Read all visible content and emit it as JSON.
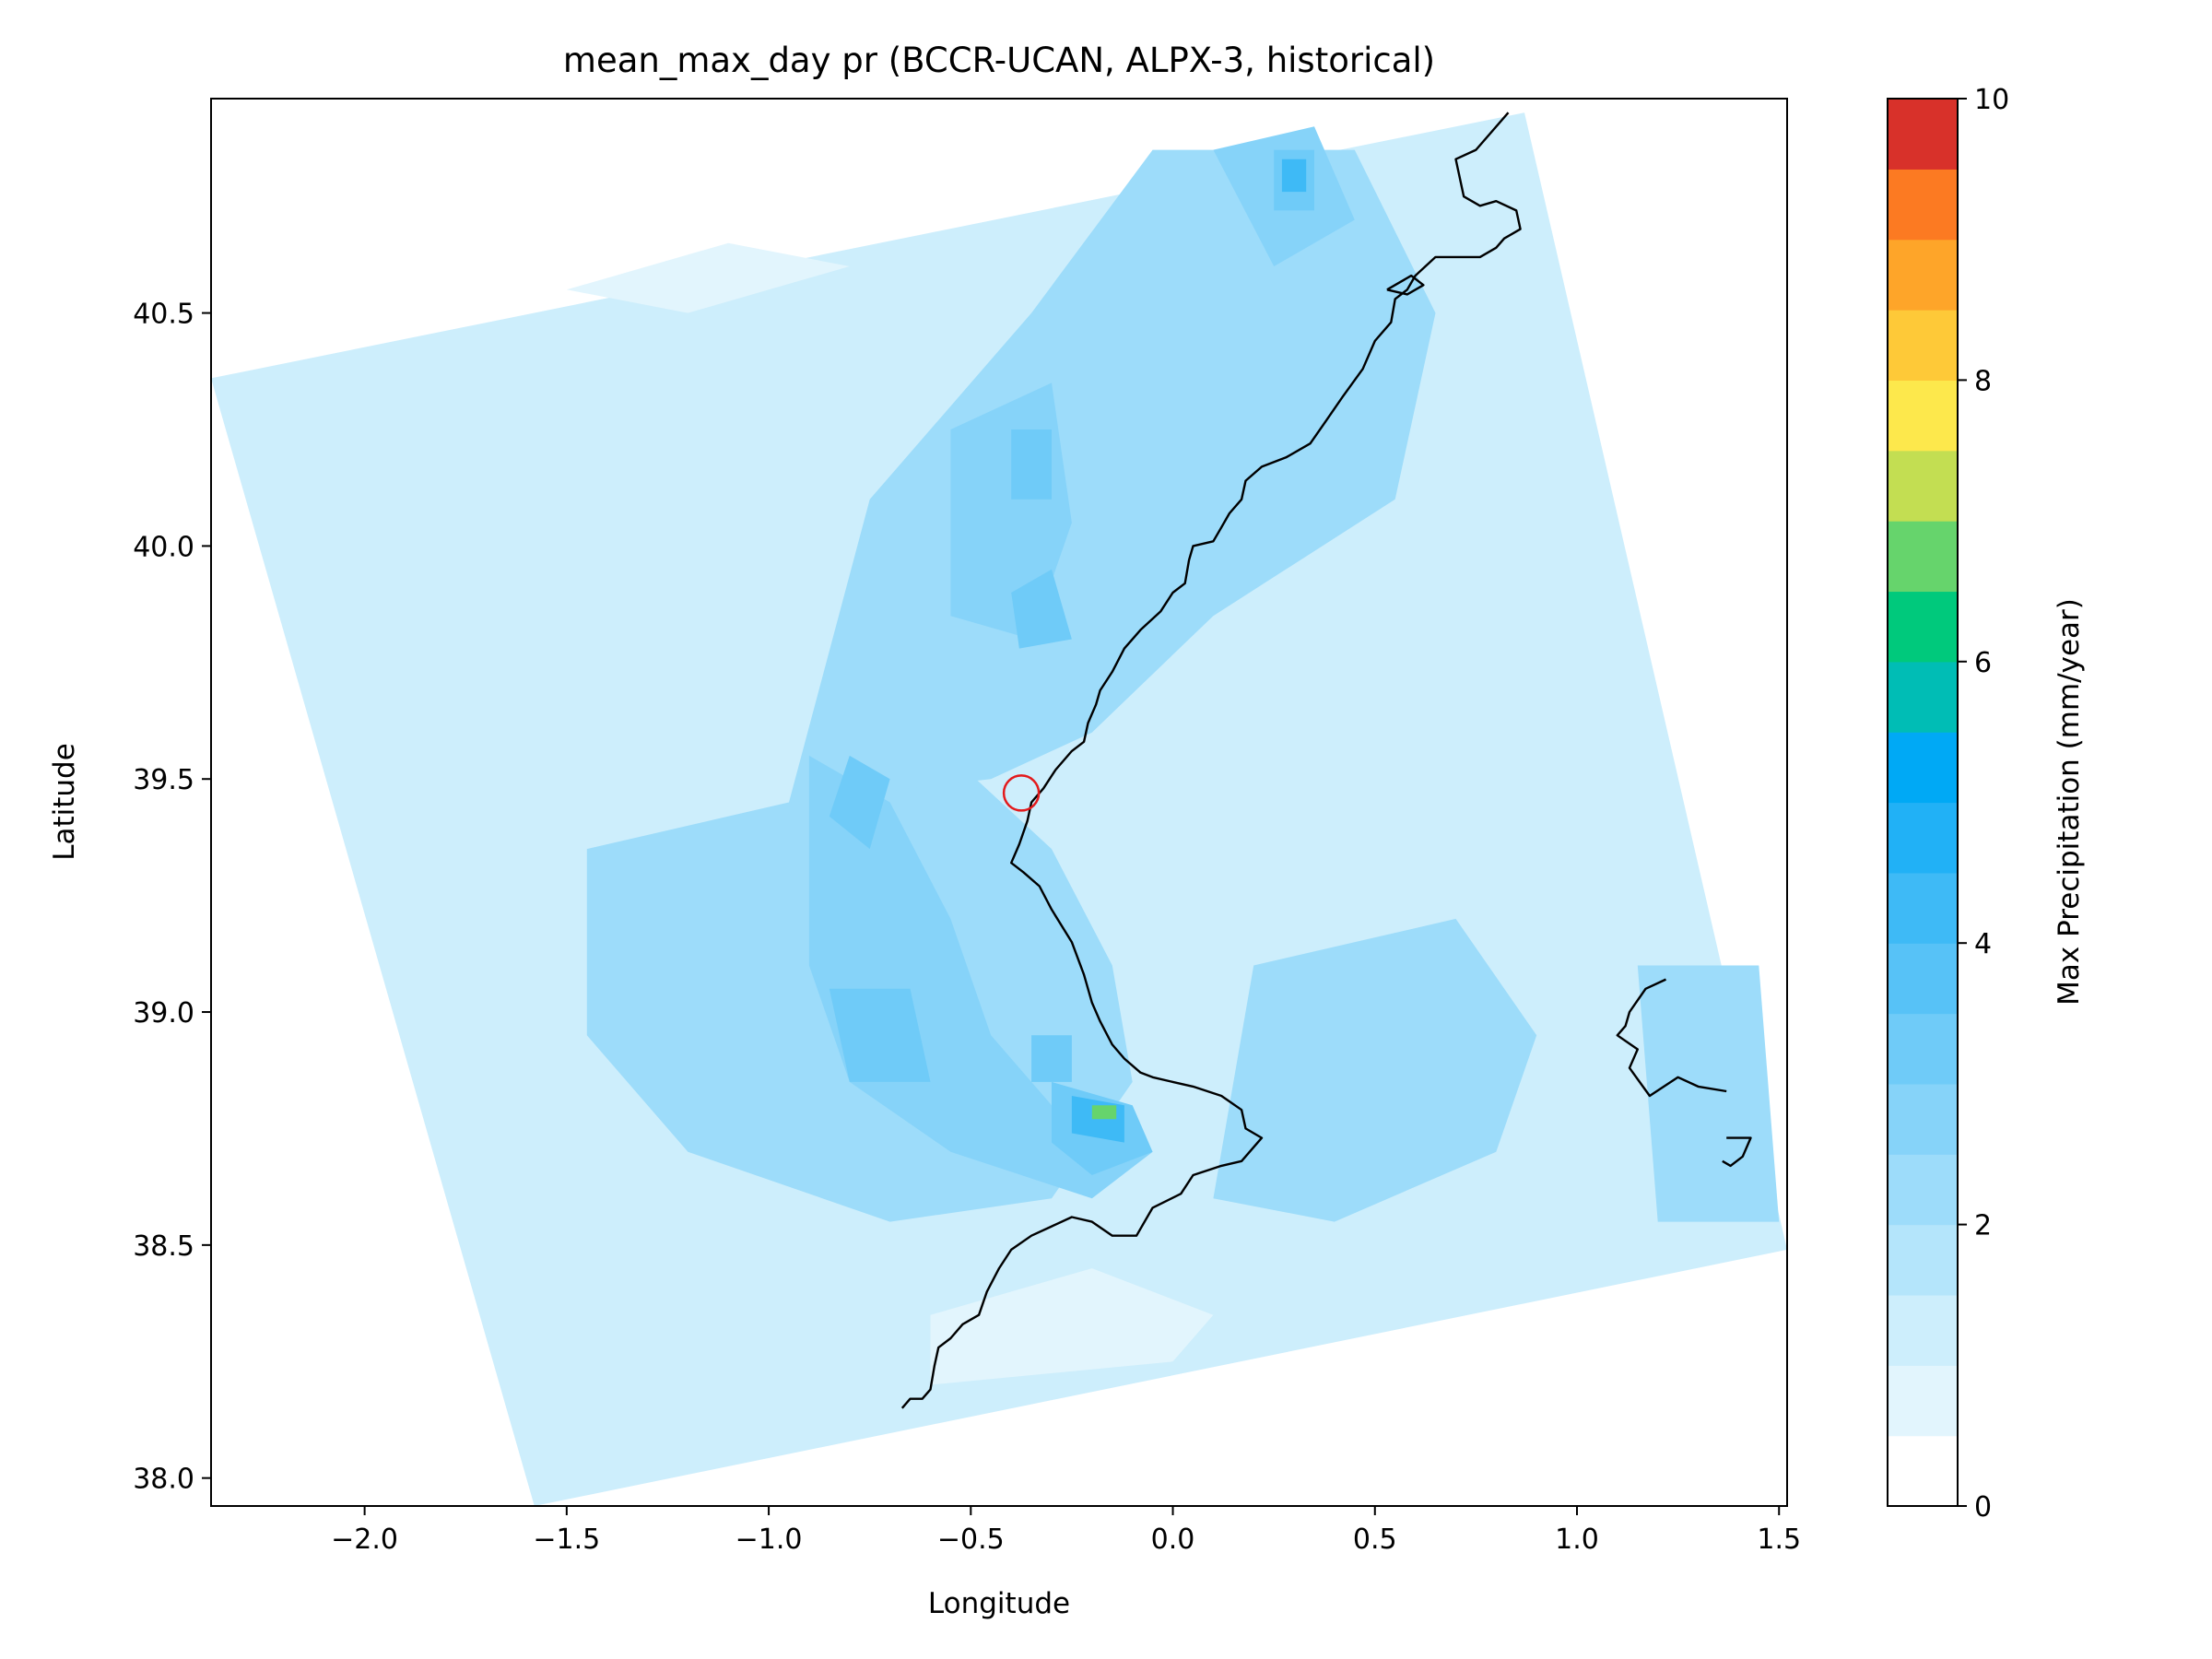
{
  "chart_data": {
    "type": "heatmap",
    "title": "mean_max_day pr (BCCR-UCAN, ALPX-3, historical)",
    "xlabel": "Longitude",
    "ylabel": "Latitude",
    "xlim": [
      -2.38,
      1.52
    ],
    "ylim": [
      37.94,
      40.96
    ],
    "xticks": [
      {
        "value": -2.0,
        "label": "−2.0"
      },
      {
        "value": -1.5,
        "label": "−1.5"
      },
      {
        "value": -1.0,
        "label": "−1.0"
      },
      {
        "value": -0.5,
        "label": "−0.5"
      },
      {
        "value": 0.0,
        "label": "0.0"
      },
      {
        "value": 0.5,
        "label": "0.5"
      },
      {
        "value": 1.0,
        "label": "1.0"
      },
      {
        "value": 1.5,
        "label": "1.5"
      }
    ],
    "yticks": [
      {
        "value": 38.0,
        "label": "38.0"
      },
      {
        "value": 38.5,
        "label": "38.5"
      },
      {
        "value": 39.0,
        "label": "39.0"
      },
      {
        "value": 39.5,
        "label": "39.5"
      },
      {
        "value": 40.0,
        "label": "40.0"
      },
      {
        "value": 40.5,
        "label": "40.5"
      }
    ],
    "domain_corners": [
      [
        -2.38,
        40.36
      ],
      [
        0.87,
        40.93
      ],
      [
        1.52,
        38.49
      ],
      [
        -1.58,
        37.94
      ]
    ],
    "background_value": 1.3,
    "regions": [
      {
        "value": 2.3,
        "polygon": [
          [
            -1.45,
            39.35
          ],
          [
            -0.95,
            39.45
          ],
          [
            -0.75,
            39.6
          ],
          [
            -0.55,
            39.55
          ],
          [
            -0.3,
            39.35
          ],
          [
            -0.15,
            39.1
          ],
          [
            -0.1,
            38.85
          ],
          [
            -0.3,
            38.6
          ],
          [
            -0.7,
            38.55
          ],
          [
            -1.2,
            38.7
          ],
          [
            -1.45,
            38.95
          ]
        ]
      },
      {
        "value": 2.3,
        "polygon": [
          [
            -0.95,
            39.45
          ],
          [
            -0.75,
            40.1
          ],
          [
            -0.35,
            40.5
          ],
          [
            -0.05,
            40.85
          ],
          [
            0.45,
            40.85
          ],
          [
            0.65,
            40.5
          ],
          [
            0.55,
            40.1
          ],
          [
            0.1,
            39.85
          ],
          [
            -0.2,
            39.6
          ],
          [
            -0.45,
            39.5
          ]
        ]
      },
      {
        "value": 2.3,
        "polygon": [
          [
            0.2,
            39.1
          ],
          [
            0.7,
            39.2
          ],
          [
            0.9,
            38.95
          ],
          [
            0.8,
            38.7
          ],
          [
            0.4,
            38.55
          ],
          [
            0.1,
            38.6
          ]
        ]
      },
      {
        "value": 2.3,
        "polygon": [
          [
            1.15,
            39.1
          ],
          [
            1.45,
            39.1
          ],
          [
            1.5,
            38.55
          ],
          [
            1.2,
            38.55
          ]
        ]
      },
      {
        "value": 2.8,
        "polygon": [
          [
            -0.9,
            39.55
          ],
          [
            -0.7,
            39.45
          ],
          [
            -0.55,
            39.2
          ],
          [
            -0.45,
            38.95
          ],
          [
            -0.25,
            38.75
          ],
          [
            -0.05,
            38.7
          ],
          [
            -0.2,
            38.6
          ],
          [
            -0.55,
            38.7
          ],
          [
            -0.8,
            38.85
          ],
          [
            -0.9,
            39.1
          ]
        ]
      },
      {
        "value": 2.8,
        "polygon": [
          [
            -0.55,
            40.25
          ],
          [
            -0.3,
            40.35
          ],
          [
            -0.25,
            40.05
          ],
          [
            -0.35,
            39.8
          ],
          [
            -0.55,
            39.85
          ]
        ]
      },
      {
        "value": 2.8,
        "polygon": [
          [
            0.1,
            40.85
          ],
          [
            0.35,
            40.9
          ],
          [
            0.45,
            40.7
          ],
          [
            0.25,
            40.6
          ]
        ]
      },
      {
        "value": 3.3,
        "polygon": [
          [
            -0.4,
            40.25
          ],
          [
            -0.3,
            40.25
          ],
          [
            -0.3,
            40.1
          ],
          [
            -0.4,
            40.1
          ]
        ]
      },
      {
        "value": 3.3,
        "polygon": [
          [
            -0.4,
            39.9
          ],
          [
            -0.3,
            39.95
          ],
          [
            -0.25,
            39.8
          ],
          [
            -0.38,
            39.78
          ]
        ]
      },
      {
        "value": 3.3,
        "polygon": [
          [
            -0.8,
            39.55
          ],
          [
            -0.7,
            39.5
          ],
          [
            -0.75,
            39.35
          ],
          [
            -0.85,
            39.42
          ]
        ]
      },
      {
        "value": 3.3,
        "polygon": [
          [
            -0.85,
            39.05
          ],
          [
            -0.65,
            39.05
          ],
          [
            -0.6,
            38.85
          ],
          [
            -0.8,
            38.85
          ]
        ]
      },
      {
        "value": 3.3,
        "polygon": [
          [
            -0.35,
            38.95
          ],
          [
            -0.25,
            38.95
          ],
          [
            -0.25,
            38.85
          ],
          [
            -0.35,
            38.85
          ]
        ]
      },
      {
        "value": 3.3,
        "polygon": [
          [
            -0.3,
            38.85
          ],
          [
            -0.1,
            38.8
          ],
          [
            -0.05,
            38.7
          ],
          [
            -0.2,
            38.65
          ],
          [
            -0.3,
            38.72
          ]
        ]
      },
      {
        "value": 3.3,
        "polygon": [
          [
            0.25,
            40.85
          ],
          [
            0.35,
            40.85
          ],
          [
            0.35,
            40.72
          ],
          [
            0.25,
            40.72
          ]
        ]
      },
      {
        "value": 4.3,
        "polygon": [
          [
            -0.25,
            38.82
          ],
          [
            -0.12,
            38.8
          ],
          [
            -0.12,
            38.72
          ],
          [
            -0.25,
            38.74
          ]
        ]
      },
      {
        "value": 4.3,
        "polygon": [
          [
            0.27,
            40.83
          ],
          [
            0.33,
            40.83
          ],
          [
            0.33,
            40.76
          ],
          [
            0.27,
            40.76
          ]
        ]
      },
      {
        "value": 0.9,
        "polygon": [
          [
            -0.6,
            38.35
          ],
          [
            -0.2,
            38.45
          ],
          [
            0.1,
            38.35
          ],
          [
            0.0,
            38.25
          ],
          [
            -0.6,
            38.2
          ]
        ]
      },
      {
        "value": 0.9,
        "polygon": [
          [
            -1.5,
            40.55
          ],
          [
            -1.1,
            40.65
          ],
          [
            -0.8,
            40.6
          ],
          [
            -1.2,
            40.5
          ]
        ]
      },
      {
        "value": 6.5,
        "polygon": [
          [
            -0.2,
            38.8
          ],
          [
            -0.14,
            38.8
          ],
          [
            -0.14,
            38.77
          ],
          [
            -0.2,
            38.77
          ]
        ]
      }
    ],
    "coastlines": [
      [
        [
          0.83,
          40.93
        ],
        [
          0.75,
          40.85
        ],
        [
          0.7,
          40.83
        ],
        [
          0.72,
          40.75
        ],
        [
          0.76,
          40.73
        ],
        [
          0.8,
          40.74
        ],
        [
          0.85,
          40.72
        ],
        [
          0.86,
          40.68
        ],
        [
          0.82,
          40.66
        ],
        [
          0.8,
          40.64
        ],
        [
          0.76,
          40.62
        ],
        [
          0.65,
          40.62
        ],
        [
          0.6,
          40.58
        ],
        [
          0.58,
          40.55
        ],
        [
          0.55,
          40.53
        ],
        [
          0.54,
          40.48
        ],
        [
          0.5,
          40.44
        ],
        [
          0.47,
          40.38
        ],
        [
          0.42,
          40.32
        ],
        [
          0.38,
          40.27
        ],
        [
          0.34,
          40.22
        ],
        [
          0.28,
          40.19
        ],
        [
          0.22,
          40.17
        ],
        [
          0.18,
          40.14
        ],
        [
          0.17,
          40.1
        ],
        [
          0.14,
          40.07
        ],
        [
          0.12,
          40.04
        ],
        [
          0.1,
          40.01
        ],
        [
          0.05,
          40.0
        ],
        [
          0.04,
          39.97
        ],
        [
          0.03,
          39.92
        ],
        [
          0.0,
          39.9
        ],
        [
          -0.03,
          39.86
        ],
        [
          -0.08,
          39.82
        ],
        [
          -0.12,
          39.78
        ],
        [
          -0.15,
          39.73
        ],
        [
          -0.18,
          39.69
        ],
        [
          -0.19,
          39.66
        ],
        [
          -0.21,
          39.62
        ],
        [
          -0.22,
          39.58
        ],
        [
          -0.25,
          39.56
        ],
        [
          -0.29,
          39.52
        ],
        [
          -0.32,
          39.48
        ],
        [
          -0.35,
          39.45
        ],
        [
          -0.36,
          39.41
        ],
        [
          -0.38,
          39.36
        ],
        [
          -0.4,
          39.32
        ],
        [
          -0.37,
          39.3
        ],
        [
          -0.33,
          39.27
        ],
        [
          -0.3,
          39.22
        ],
        [
          -0.25,
          39.15
        ],
        [
          -0.22,
          39.08
        ],
        [
          -0.2,
          39.02
        ],
        [
          -0.18,
          38.98
        ],
        [
          -0.15,
          38.93
        ],
        [
          -0.12,
          38.9
        ],
        [
          -0.08,
          38.87
        ],
        [
          -0.05,
          38.86
        ],
        [
          0.0,
          38.85
        ],
        [
          0.05,
          38.84
        ],
        [
          0.12,
          38.82
        ],
        [
          0.17,
          38.79
        ],
        [
          0.18,
          38.75
        ],
        [
          0.22,
          38.73
        ],
        [
          0.2,
          38.71
        ],
        [
          0.17,
          38.68
        ],
        [
          0.12,
          38.67
        ],
        [
          0.05,
          38.65
        ],
        [
          0.02,
          38.61
        ],
        [
          -0.05,
          38.58
        ],
        [
          -0.09,
          38.52
        ],
        [
          -0.15,
          38.52
        ],
        [
          -0.2,
          38.55
        ],
        [
          -0.25,
          38.56
        ],
        [
          -0.3,
          38.54
        ],
        [
          -0.35,
          38.52
        ],
        [
          -0.4,
          38.49
        ],
        [
          -0.43,
          38.45
        ],
        [
          -0.46,
          38.4
        ],
        [
          -0.48,
          38.35
        ],
        [
          -0.52,
          38.33
        ],
        [
          -0.55,
          38.3
        ],
        [
          -0.58,
          38.28
        ],
        [
          -0.59,
          38.24
        ],
        [
          -0.6,
          38.19
        ],
        [
          -0.62,
          38.17
        ],
        [
          -0.65,
          38.17
        ],
        [
          -0.67,
          38.15
        ]
      ],
      [
        [
          0.53,
          40.55
        ],
        [
          0.59,
          40.58
        ],
        [
          0.62,
          40.56
        ],
        [
          0.58,
          40.54
        ],
        [
          0.53,
          40.55
        ]
      ],
      [
        [
          1.22,
          39.07
        ],
        [
          1.17,
          39.05
        ],
        [
          1.13,
          39.0
        ],
        [
          1.12,
          38.97
        ],
        [
          1.1,
          38.95
        ],
        [
          1.15,
          38.92
        ],
        [
          1.13,
          38.88
        ],
        [
          1.18,
          38.82
        ],
        [
          1.25,
          38.86
        ],
        [
          1.3,
          38.84
        ],
        [
          1.37,
          38.83
        ]
      ],
      [
        [
          1.37,
          38.73
        ],
        [
          1.43,
          38.73
        ],
        [
          1.41,
          38.69
        ],
        [
          1.38,
          38.67
        ],
        [
          1.36,
          38.68
        ]
      ]
    ],
    "marker": {
      "lon": -0.375,
      "lat": 39.47
    },
    "colorbar": {
      "label": "Max Precipitation (mm/year)",
      "min": 0,
      "max": 10,
      "tick_labels": [
        "0",
        "2",
        "4",
        "6",
        "8",
        "10"
      ],
      "bins": [
        {
          "from": 0.0,
          "to": 0.5,
          "color": "#ffffff"
        },
        {
          "from": 0.5,
          "to": 1.0,
          "color": "#e2f5fd"
        },
        {
          "from": 1.0,
          "to": 1.5,
          "color": "#cdeefc"
        },
        {
          "from": 1.5,
          "to": 2.0,
          "color": "#b4e5fb"
        },
        {
          "from": 2.0,
          "to": 2.5,
          "color": "#9ddcfa"
        },
        {
          "from": 2.5,
          "to": 3.0,
          "color": "#86d3f9"
        },
        {
          "from": 3.0,
          "to": 3.5,
          "color": "#6fcbf8"
        },
        {
          "from": 3.5,
          "to": 4.0,
          "color": "#57c2f7"
        },
        {
          "from": 4.0,
          "to": 4.5,
          "color": "#3ebaf6"
        },
        {
          "from": 4.5,
          "to": 5.0,
          "color": "#21b1f6"
        },
        {
          "from": 5.0,
          "to": 5.5,
          "color": "#00a9f5"
        },
        {
          "from": 5.5,
          "to": 6.0,
          "color": "#00bdb5"
        },
        {
          "from": 6.0,
          "to": 6.5,
          "color": "#00c97c"
        },
        {
          "from": 6.5,
          "to": 7.0,
          "color": "#66d46c"
        },
        {
          "from": 7.0,
          "to": 7.5,
          "color": "#c3de52"
        },
        {
          "from": 7.5,
          "to": 8.0,
          "color": "#fde84c"
        },
        {
          "from": 8.0,
          "to": 8.5,
          "color": "#fec938"
        },
        {
          "from": 8.5,
          "to": 9.0,
          "color": "#fea529"
        },
        {
          "from": 9.0,
          "to": 9.5,
          "color": "#fc7a22"
        },
        {
          "from": 9.5,
          "to": 10.0,
          "color": "#d8312a"
        }
      ]
    },
    "colors": {
      "coastline": "#000000",
      "marker": "#e31a1c",
      "frame": "#000000"
    },
    "grid": false
  }
}
